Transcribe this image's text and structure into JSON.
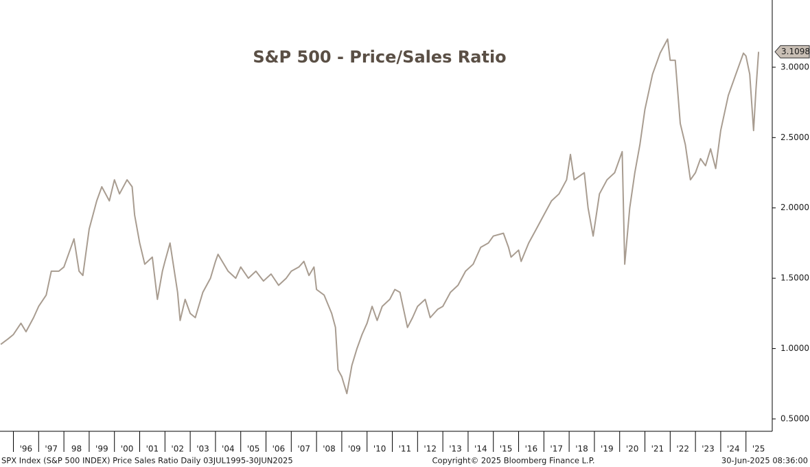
{
  "chart_data": {
    "type": "line",
    "title": "S&P 500 - Price/Sales Ratio",
    "series": [
      {
        "name": "SPX Index (S&P 500 INDEX) Price Sales Ratio",
        "color": "#a89c90",
        "x": [
          1995.5,
          1995.8,
          1996.0,
          1996.3,
          1996.5,
          1996.8,
          1997.0,
          1997.3,
          1997.5,
          1997.8,
          1998.0,
          1998.4,
          1998.6,
          1998.75,
          1999.0,
          1999.3,
          1999.5,
          1999.8,
          2000.0,
          2000.2,
          2000.5,
          2000.7,
          2000.8,
          2001.0,
          2001.2,
          2001.5,
          2001.7,
          2001.9,
          2002.0,
          2002.2,
          2002.5,
          2002.6,
          2002.8,
          2003.0,
          2003.2,
          2003.5,
          2003.8,
          2004.0,
          2004.1,
          2004.5,
          2004.8,
          2005.0,
          2005.3,
          2005.6,
          2005.9,
          2006.2,
          2006.5,
          2006.8,
          2007.0,
          2007.3,
          2007.5,
          2007.7,
          2007.9,
          2008.0,
          2008.3,
          2008.6,
          2008.75,
          2008.85,
          2009.0,
          2009.2,
          2009.4,
          2009.6,
          2009.8,
          2010.0,
          2010.2,
          2010.4,
          2010.6,
          2010.9,
          2011.1,
          2011.3,
          2011.6,
          2011.8,
          2012.0,
          2012.3,
          2012.5,
          2012.8,
          2013.0,
          2013.3,
          2013.6,
          2013.9,
          2014.2,
          2014.5,
          2014.8,
          2015.0,
          2015.4,
          2015.6,
          2015.7,
          2016.0,
          2016.1,
          2016.4,
          2016.7,
          2017.0,
          2017.3,
          2017.6,
          2017.9,
          2018.05,
          2018.2,
          2018.6,
          2018.75,
          2018.95,
          2019.2,
          2019.5,
          2019.8,
          2020.1,
          2020.2,
          2020.4,
          2020.6,
          2020.8,
          2021.0,
          2021.3,
          2021.6,
          2021.9,
          2022.0,
          2022.2,
          2022.4,
          2022.6,
          2022.8,
          2023.0,
          2023.2,
          2023.4,
          2023.6,
          2023.8,
          2024.0,
          2024.3,
          2024.6,
          2024.9,
          2025.0,
          2025.15,
          2025.3,
          2025.4,
          2025.5
        ],
        "values": [
          1.03,
          1.07,
          1.1,
          1.18,
          1.12,
          1.22,
          1.3,
          1.38,
          1.55,
          1.55,
          1.58,
          1.78,
          1.55,
          1.52,
          1.85,
          2.05,
          2.15,
          2.05,
          2.2,
          2.1,
          2.2,
          2.15,
          1.95,
          1.75,
          1.6,
          1.65,
          1.35,
          1.55,
          1.62,
          1.75,
          1.4,
          1.2,
          1.35,
          1.25,
          1.22,
          1.4,
          1.5,
          1.62,
          1.67,
          1.55,
          1.5,
          1.58,
          1.5,
          1.55,
          1.48,
          1.53,
          1.45,
          1.5,
          1.55,
          1.58,
          1.62,
          1.52,
          1.58,
          1.42,
          1.38,
          1.25,
          1.15,
          0.85,
          0.8,
          0.68,
          0.88,
          1.0,
          1.1,
          1.18,
          1.3,
          1.2,
          1.3,
          1.35,
          1.42,
          1.4,
          1.15,
          1.22,
          1.3,
          1.35,
          1.22,
          1.28,
          1.3,
          1.4,
          1.45,
          1.55,
          1.6,
          1.72,
          1.75,
          1.8,
          1.82,
          1.72,
          1.65,
          1.7,
          1.62,
          1.75,
          1.85,
          1.95,
          2.05,
          2.1,
          2.2,
          2.38,
          2.2,
          2.25,
          2.0,
          1.8,
          2.1,
          2.2,
          2.25,
          2.4,
          1.6,
          2.0,
          2.25,
          2.45,
          2.7,
          2.95,
          3.1,
          3.2,
          3.05,
          3.05,
          2.6,
          2.45,
          2.2,
          2.25,
          2.35,
          2.3,
          2.42,
          2.28,
          2.55,
          2.8,
          2.95,
          3.1,
          3.08,
          2.95,
          2.55,
          2.85,
          3.1098
        ]
      }
    ],
    "last_label": {
      "value": 3.1098,
      "label": "3.1098"
    },
    "xlim": [
      1995.47,
      2026.04
    ],
    "xticks": [
      {
        "value": 1996,
        "label": "'96"
      },
      {
        "value": 1997,
        "label": "'97"
      },
      {
        "value": 1998,
        "label": "98"
      },
      {
        "value": 1999,
        "label": "'99"
      },
      {
        "value": 2000,
        "label": "'00"
      },
      {
        "value": 2001,
        "label": "'01"
      },
      {
        "value": 2002,
        "label": "'02"
      },
      {
        "value": 2003,
        "label": "'03"
      },
      {
        "value": 2004,
        "label": "'04"
      },
      {
        "value": 2005,
        "label": "'05"
      },
      {
        "value": 2006,
        "label": "'06"
      },
      {
        "value": 2007,
        "label": "'07"
      },
      {
        "value": 2008,
        "label": "'08"
      },
      {
        "value": 2009,
        "label": "'09"
      },
      {
        "value": 2010,
        "label": "'10"
      },
      {
        "value": 2011,
        "label": "'11"
      },
      {
        "value": 2012,
        "label": "'12"
      },
      {
        "value": 2013,
        "label": "'13"
      },
      {
        "value": 2014,
        "label": "'14"
      },
      {
        "value": 2015,
        "label": "'15"
      },
      {
        "value": 2016,
        "label": "'16"
      },
      {
        "value": 2017,
        "label": "'17"
      },
      {
        "value": 2018,
        "label": "'18"
      },
      {
        "value": 2019,
        "label": "'19"
      },
      {
        "value": 2020,
        "label": "'20"
      },
      {
        "value": 2021,
        "label": "'21"
      },
      {
        "value": 2022,
        "label": "'22"
      },
      {
        "value": 2023,
        "label": "'23"
      },
      {
        "value": 2024,
        "label": "'24"
      },
      {
        "value": 2025,
        "label": "'25"
      }
    ],
    "ylim": [
      0.412,
      3.478
    ],
    "yticks": [
      {
        "value": 0.5,
        "label": "0.5000"
      },
      {
        "value": 1.0,
        "label": "1.0000"
      },
      {
        "value": 1.5,
        "label": "1.5000"
      },
      {
        "value": 2.0,
        "label": "2.0000"
      },
      {
        "value": 2.5,
        "label": "2.5000"
      },
      {
        "value": 3.0,
        "label": "3.0000"
      }
    ],
    "grid": false,
    "footer": {
      "left": "SPX Index (S&P 500 INDEX) Price Sales Ratio  Daily 03JUL1995-30JUN2025",
      "center": "Copyright© 2025 Bloomberg Finance L.P.",
      "right": "30-Jun-2025 08:36:00"
    }
  }
}
